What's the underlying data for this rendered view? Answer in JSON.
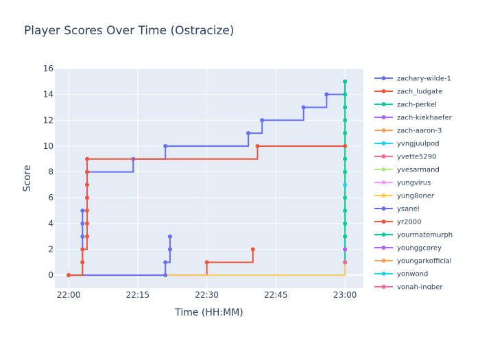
{
  "chart_data": {
    "type": "line",
    "line_shape": "step",
    "title": "Player Scores Over Time (Ostracize)",
    "xlabel": "Time (HH:MM)",
    "ylabel": "Score",
    "xlim": [
      "21:57",
      "23:04"
    ],
    "ylim": [
      -1,
      16
    ],
    "x_ticks": [
      "22:00",
      "22:15",
      "22:30",
      "22:45",
      "23:00"
    ],
    "y_ticks": [
      0,
      2,
      4,
      6,
      8,
      10,
      12,
      14,
      16
    ],
    "grid": true,
    "legend_position": "right",
    "series": [
      {
        "name": "zachary-wilde-1",
        "color": "#636efa",
        "points": [
          [
            "22:00",
            0
          ],
          [
            "22:03",
            1
          ],
          [
            "22:03",
            2
          ],
          [
            "22:03",
            3
          ],
          [
            "22:03",
            4
          ],
          [
            "22:03",
            5
          ],
          [
            "22:04",
            6
          ],
          [
            "22:04",
            7
          ],
          [
            "22:04",
            8
          ],
          [
            "22:14",
            9
          ],
          [
            "22:21",
            10
          ],
          [
            "22:39",
            11
          ],
          [
            "22:42",
            12
          ],
          [
            "22:51",
            13
          ],
          [
            "22:56",
            14
          ],
          [
            "23:00",
            15
          ]
        ]
      },
      {
        "name": "zach_ludgate",
        "color": "#ef553b",
        "points": [
          [
            "22:00",
            0
          ],
          [
            "22:30",
            1
          ],
          [
            "22:40",
            2
          ]
        ]
      },
      {
        "name": "zach-perkel",
        "color": "#00cc96",
        "points": [
          [
            "23:00",
            1
          ],
          [
            "23:00",
            2
          ],
          [
            "23:00",
            3
          ],
          [
            "23:00",
            4
          ],
          [
            "23:00",
            5
          ],
          [
            "23:00",
            6
          ],
          [
            "23:00",
            7
          ],
          [
            "23:00",
            8
          ],
          [
            "23:00",
            9
          ],
          [
            "23:00",
            10
          ],
          [
            "23:00",
            11
          ],
          [
            "23:00",
            12
          ],
          [
            "23:00",
            13
          ],
          [
            "23:00",
            14
          ],
          [
            "23:00",
            15
          ]
        ]
      },
      {
        "name": "zach-kiekhaefer",
        "color": "#ab63fa",
        "points": [
          [
            "23:00",
            2
          ]
        ]
      },
      {
        "name": "zach-aaron-3",
        "color": "#ffa15a",
        "points": [
          [
            "23:00",
            1
          ]
        ]
      },
      {
        "name": "yvngjuulpod",
        "color": "#19d3f3",
        "points": [
          [
            "23:00",
            7
          ]
        ]
      },
      {
        "name": "yvette5290",
        "color": "#ff6692",
        "points": [
          [
            "23:00",
            2
          ]
        ]
      },
      {
        "name": "yvesarmand",
        "color": "#b6e880",
        "points": [
          [
            "23:00",
            1
          ]
        ]
      },
      {
        "name": "yungvirus",
        "color": "#ff97ff",
        "points": [
          [
            "23:00",
            1
          ]
        ]
      },
      {
        "name": "yung8oner",
        "color": "#fecb52",
        "points": [
          [
            "22:00",
            0
          ],
          [
            "23:00",
            1
          ]
        ]
      },
      {
        "name": "ysanel",
        "color": "#636efa",
        "points": [
          [
            "22:00",
            0
          ],
          [
            "22:21",
            0
          ],
          [
            "22:21",
            1
          ],
          [
            "22:22",
            2
          ],
          [
            "22:22",
            3
          ]
        ]
      },
      {
        "name": "yr2000",
        "color": "#ef553b",
        "points": [
          [
            "22:00",
            0
          ],
          [
            "22:03",
            1
          ],
          [
            "22:03",
            2
          ],
          [
            "22:04",
            3
          ],
          [
            "22:04",
            4
          ],
          [
            "22:04",
            5
          ],
          [
            "22:04",
            6
          ],
          [
            "22:04",
            7
          ],
          [
            "22:04",
            8
          ],
          [
            "22:04",
            9
          ],
          [
            "22:41",
            10
          ],
          [
            "23:00",
            10
          ]
        ]
      },
      {
        "name": "yourmatemurph",
        "color": "#00cc96",
        "points": [
          [
            "23:00",
            1
          ]
        ]
      },
      {
        "name": "younggcorey",
        "color": "#ab63fa",
        "points": [
          [
            "23:00",
            2
          ]
        ]
      },
      {
        "name": "youngarkofficial",
        "color": "#ffa15a",
        "points": [
          [
            "23:00",
            1
          ]
        ]
      },
      {
        "name": "yonwond",
        "color": "#19d3f3",
        "points": [
          [
            "23:00",
            1
          ]
        ]
      },
      {
        "name": "yonah-ingber",
        "color": "#ff6692",
        "points": [
          [
            "23:00",
            1
          ]
        ]
      }
    ]
  }
}
